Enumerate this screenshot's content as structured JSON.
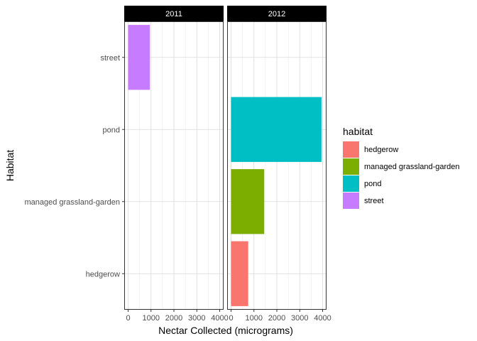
{
  "chart_data": {
    "type": "bar",
    "orientation": "horizontal",
    "facet_variable": "year",
    "facets": [
      {
        "label": "2011",
        "values": {
          "hedgerow": 0,
          "managed grassland-garden": 0,
          "pond": 0,
          "street": 950
        }
      },
      {
        "label": "2012",
        "values": {
          "hedgerow": 750,
          "managed grassland-garden": 1450,
          "pond": 3950,
          "street": 0
        }
      }
    ],
    "categories": [
      "hedgerow",
      "managed grassland-garden",
      "pond",
      "street"
    ],
    "xlabel": "Nectar Collected (micrograms)",
    "ylabel": "Habitat",
    "xlim": [
      0,
      4000
    ],
    "xticks": [
      0,
      1000,
      2000,
      3000,
      4000
    ],
    "xtick_labels": [
      "0",
      "1000",
      "2000",
      "3000",
      "4000"
    ],
    "grid": true,
    "legend": {
      "title": "habitat",
      "position": "right",
      "items": [
        {
          "label": "hedgerow",
          "color": "#F8766D"
        },
        {
          "label": "managed grassland-garden",
          "color": "#7CAE00"
        },
        {
          "label": "pond",
          "color": "#00BFC4"
        },
        {
          "label": "street",
          "color": "#C77CFF"
        }
      ]
    }
  }
}
